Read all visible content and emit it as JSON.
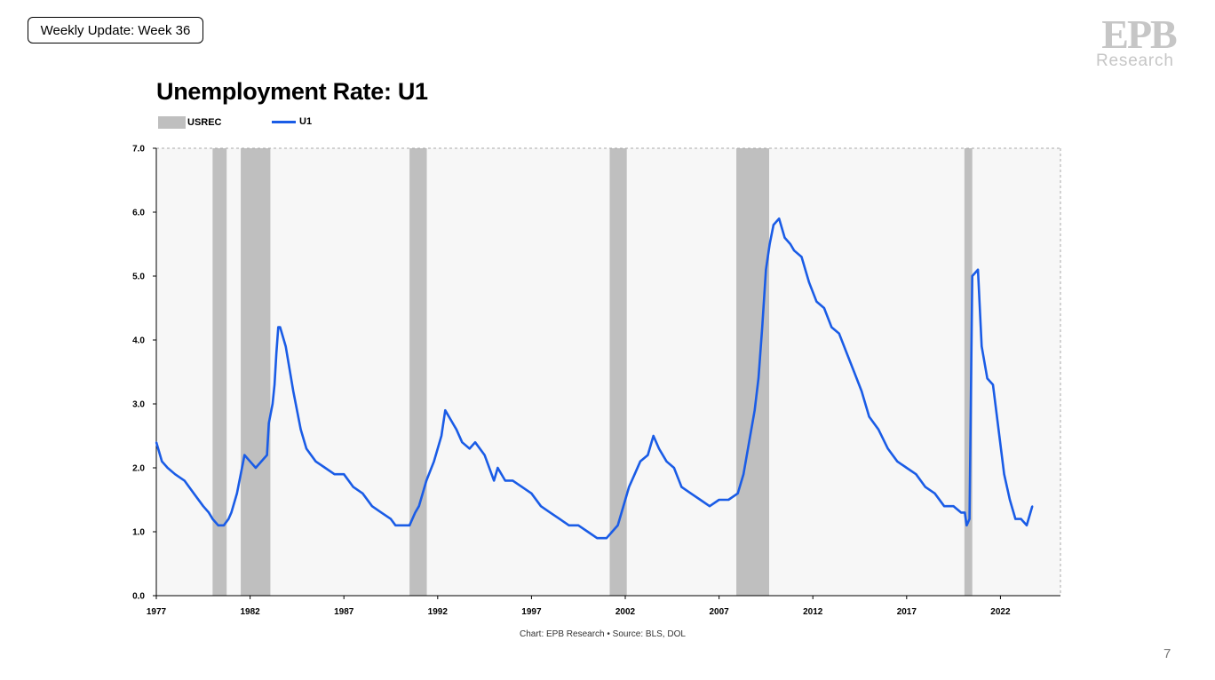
{
  "header": {
    "week_label": "Weekly Update: Week 36"
  },
  "logo": {
    "letters": "EPB",
    "subtitle": "Research",
    "color": "#c6c6c6"
  },
  "page_number": "7",
  "colors": {
    "u1_line": "#1a5ce6",
    "recession_band": "#bfbfbf",
    "plot_background": "#f7f7f7"
  },
  "chart_data": {
    "type": "line",
    "title": "Unemployment Rate: U1",
    "xlabel": "",
    "ylabel": "",
    "source": "Chart: EPB Research  •  Source: BLS, DOL",
    "ylim": [
      0,
      7
    ],
    "xlim": [
      1977,
      2025.2
    ],
    "y_ticks": [
      "0.0",
      "1.0",
      "2.0",
      "3.0",
      "4.0",
      "5.0",
      "6.0",
      "7.0"
    ],
    "x_ticks": [
      "1977",
      "1982",
      "1987",
      "1992",
      "1997",
      "2002",
      "2007",
      "2012",
      "2017",
      "2022"
    ],
    "legend_position": "top-left",
    "grid": false,
    "recessions": {
      "name": "USREC",
      "periods": [
        [
          1980.0,
          1980.75
        ],
        [
          1981.5,
          1983.08
        ],
        [
          1990.5,
          1991.42
        ],
        [
          2001.17,
          2002.08
        ],
        [
          2007.92,
          2009.67
        ],
        [
          2020.08,
          2020.5
        ]
      ]
    },
    "series": [
      {
        "name": "U1",
        "x": [
          1977.0,
          1977.3,
          1977.6,
          1978.0,
          1978.5,
          1979.0,
          1979.5,
          1979.8,
          1980.0,
          1980.3,
          1980.6,
          1980.85,
          1981.0,
          1981.3,
          1981.7,
          1982.0,
          1982.3,
          1982.6,
          1982.9,
          1983.0,
          1983.2,
          1983.3,
          1983.4,
          1983.5,
          1983.6,
          1983.9,
          1984.3,
          1984.7,
          1985.0,
          1985.5,
          1986.0,
          1986.5,
          1987.0,
          1987.5,
          1988.0,
          1988.5,
          1989.0,
          1989.5,
          1989.75,
          1990.0,
          1990.5,
          1990.8,
          1991.0,
          1991.4,
          1991.8,
          1992.2,
          1992.4,
          1992.8,
          1993.0,
          1993.3,
          1993.7,
          1994.0,
          1994.5,
          1995.0,
          1995.2,
          1995.6,
          1996.0,
          1996.5,
          1997.0,
          1997.5,
          1998.0,
          1998.5,
          1999.0,
          1999.5,
          2000.0,
          2000.5,
          2001.0,
          2001.3,
          2001.6,
          2001.9,
          2002.2,
          2002.5,
          2002.8,
          2003.2,
          2003.5,
          2003.8,
          2004.2,
          2004.6,
          2005.0,
          2005.5,
          2006.0,
          2006.5,
          2007.0,
          2007.5,
          2008.0,
          2008.3,
          2008.6,
          2008.9,
          2009.1,
          2009.3,
          2009.5,
          2009.7,
          2009.9,
          2010.2,
          2010.5,
          2010.8,
          2011.0,
          2011.4,
          2011.8,
          2012.2,
          2012.6,
          2013.0,
          2013.4,
          2013.8,
          2014.2,
          2014.6,
          2015.0,
          2015.5,
          2016.0,
          2016.5,
          2017.0,
          2017.5,
          2018.0,
          2018.5,
          2019.0,
          2019.5,
          2019.9,
          2020.1,
          2020.2,
          2020.35,
          2020.5,
          2020.8,
          2021.0,
          2021.3,
          2021.6,
          2021.9,
          2022.2,
          2022.5,
          2022.8,
          2023.1,
          2023.4,
          2023.7
        ],
        "values": [
          2.4,
          2.1,
          2.0,
          1.9,
          1.8,
          1.6,
          1.4,
          1.3,
          1.2,
          1.1,
          1.1,
          1.2,
          1.3,
          1.6,
          2.2,
          2.1,
          2.0,
          2.1,
          2.2,
          2.7,
          3.0,
          3.3,
          3.8,
          4.2,
          4.2,
          3.9,
          3.2,
          2.6,
          2.3,
          2.1,
          2.0,
          1.9,
          1.9,
          1.7,
          1.6,
          1.4,
          1.3,
          1.2,
          1.1,
          1.1,
          1.1,
          1.3,
          1.4,
          1.8,
          2.1,
          2.5,
          2.9,
          2.7,
          2.6,
          2.4,
          2.3,
          2.4,
          2.2,
          1.8,
          2.0,
          1.8,
          1.8,
          1.7,
          1.6,
          1.4,
          1.3,
          1.2,
          1.1,
          1.1,
          1.0,
          0.9,
          0.9,
          1.0,
          1.1,
          1.4,
          1.7,
          1.9,
          2.1,
          2.2,
          2.5,
          2.3,
          2.1,
          2.0,
          1.7,
          1.6,
          1.5,
          1.4,
          1.5,
          1.5,
          1.6,
          1.9,
          2.4,
          2.9,
          3.4,
          4.2,
          5.1,
          5.5,
          5.8,
          5.9,
          5.6,
          5.5,
          5.4,
          5.3,
          4.9,
          4.6,
          4.5,
          4.2,
          4.1,
          3.8,
          3.5,
          3.2,
          2.8,
          2.6,
          2.3,
          2.1,
          2.0,
          1.9,
          1.7,
          1.6,
          1.4,
          1.4,
          1.3,
          1.3,
          1.1,
          1.2,
          5.0,
          5.1,
          3.9,
          3.4,
          3.3,
          2.6,
          1.9,
          1.5,
          1.2,
          1.2,
          1.1,
          1.4
        ]
      }
    ]
  }
}
